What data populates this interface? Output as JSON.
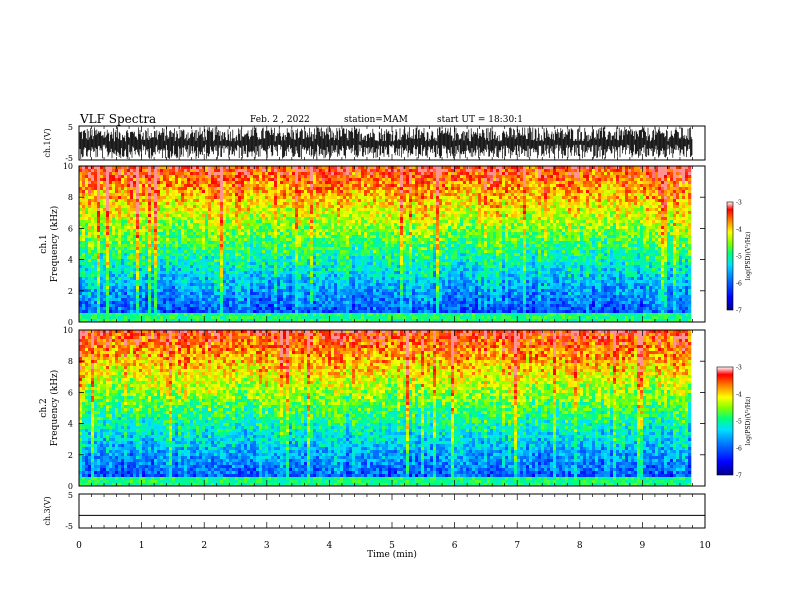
{
  "header": {
    "title": "VLF Spectra",
    "date": "Feb. 2 , 2022",
    "station": "station=MAM",
    "start": "start UT = 18:30:1"
  },
  "chart_data": [
    {
      "type": "line",
      "name": "ch1-waveform",
      "ylabel": "ch.1(V)",
      "ylim": [
        -5,
        5
      ],
      "ytick_labels": [
        "-5",
        "5"
      ],
      "xlim": [
        0,
        10
      ],
      "description_of_signal": "dense noise burst waveform"
    },
    {
      "type": "heatmap",
      "name": "ch1-spectrogram",
      "ylabel_1": "ch.1",
      "ylabel_2": "Frequency (kHz)",
      "ylim": [
        0,
        10
      ],
      "yticks": [
        0,
        2,
        4,
        6,
        8,
        10
      ],
      "xlim": [
        0,
        10
      ],
      "data_xmax": 9.8,
      "colorbar": {
        "label": "log(PSD)(V²/Hz)",
        "ticks": [
          -7,
          -6,
          -5,
          -4,
          -3
        ],
        "min": -7,
        "max": -3
      }
    },
    {
      "type": "heatmap",
      "name": "ch2-spectrogram",
      "ylabel_1": "ch.2",
      "ylabel_2": "Frequency (kHz)",
      "ylim": [
        0,
        10
      ],
      "yticks": [
        0,
        2,
        4,
        6,
        8,
        10
      ],
      "xlim": [
        0,
        10
      ],
      "data_xmax": 9.8,
      "colorbar": {
        "label": "log(PSD)(V²/Hz)",
        "ticks": [
          -7,
          -6,
          -5,
          -4,
          -3
        ],
        "min": -7,
        "max": -3
      }
    },
    {
      "type": "line",
      "name": "ch3-waveform",
      "ylabel": "ch.3(V)",
      "ylim": [
        -5,
        5
      ],
      "ytick_labels": [
        "-5",
        "5"
      ],
      "xlim": [
        0,
        10
      ],
      "constant_value": -1.3
    }
  ],
  "xaxis": {
    "label": "Time (min)",
    "ticks": [
      "0",
      "1",
      "2",
      "3",
      "4",
      "5",
      "6",
      "7",
      "8",
      "9",
      "10"
    ]
  },
  "colors": {
    "colormap": [
      "#00008b",
      "#0000ff",
      "#0080ff",
      "#00e0ff",
      "#00ff80",
      "#80ff00",
      "#ffff00",
      "#ff8000",
      "#ff0000",
      "#ffffff"
    ]
  }
}
